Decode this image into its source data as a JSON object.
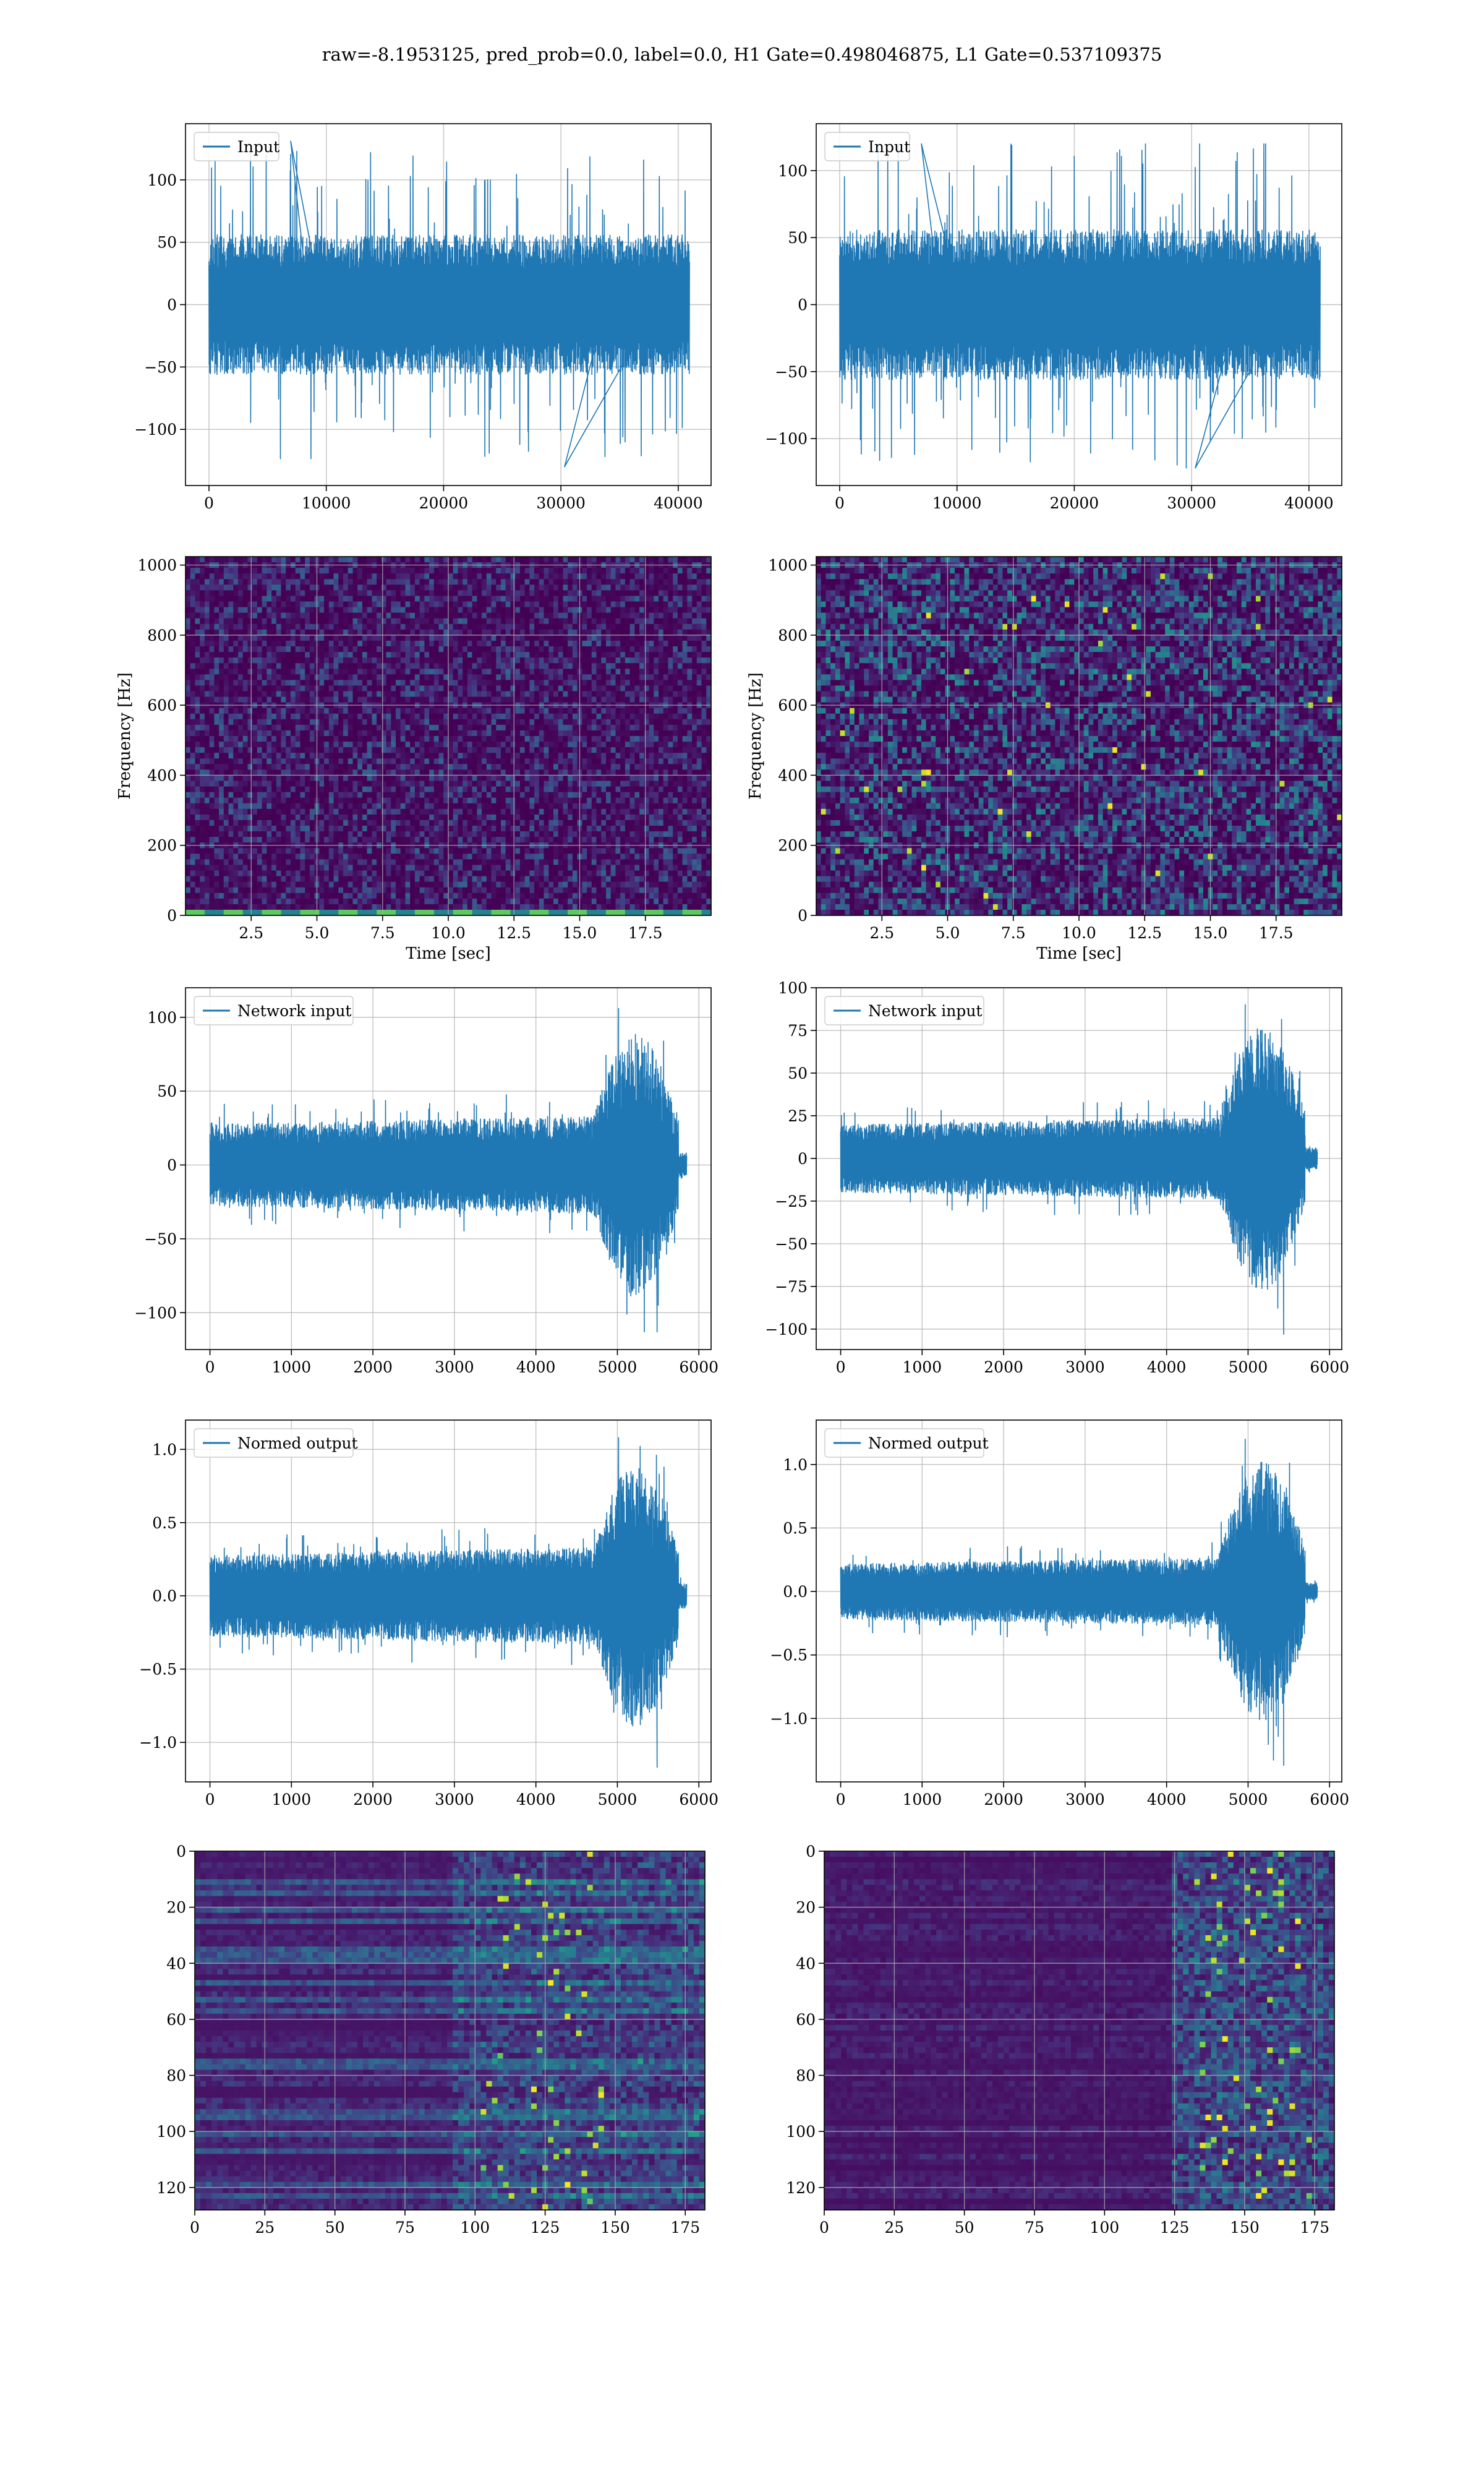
{
  "figure": {
    "suptitle": "raw=-8.1953125, pred_prob=0.0, label=0.0, H1 Gate=0.498046875, L1 Gate=0.537109375"
  },
  "colors": {
    "line": "#1f77b4",
    "viridis_dark": "#440154",
    "viridis_bright": "#fde725",
    "grid": "#b0b0b0"
  },
  "chart_data": [
    {
      "id": "input-h1",
      "type": "line",
      "legend": "Input",
      "legend_position": "upper left",
      "xlim": [
        -2000,
        42800
      ],
      "ylim": [
        -145,
        145
      ],
      "xticks": [
        0,
        10000,
        20000,
        30000,
        40000
      ],
      "yticks": [
        -100,
        -50,
        0,
        50,
        100
      ],
      "grid": true,
      "series": [
        {
          "x_start": 0,
          "x_end": 40960,
          "band": 40,
          "max_peak": 131,
          "min_peak": -130
        }
      ]
    },
    {
      "id": "input-l1",
      "type": "line",
      "legend": "Input",
      "legend_position": "upper left",
      "xlim": [
        -2000,
        42800
      ],
      "ylim": [
        -135,
        135
      ],
      "xticks": [
        0,
        10000,
        20000,
        30000,
        40000
      ],
      "yticks": [
        -100,
        -50,
        0,
        50,
        100
      ],
      "grid": true,
      "series": [
        {
          "x_start": 0,
          "x_end": 40960,
          "band": 40,
          "max_peak": 120,
          "min_peak": -122
        }
      ]
    },
    {
      "id": "spectrogram-h1",
      "type": "heatmap",
      "xlabel": "Time [sec]",
      "ylabel": "Frequency [Hz]",
      "xlim": [
        0,
        20
      ],
      "ylim": [
        0,
        1024
      ],
      "xticks": [
        2.5,
        5.0,
        7.5,
        10.0,
        12.5,
        15.0,
        17.5
      ],
      "yticks": [
        0,
        200,
        400,
        600,
        800,
        1000
      ],
      "grid": true,
      "colormap": "viridis",
      "note_feature": "bright low-frequency line near 20 Hz"
    },
    {
      "id": "spectrogram-l1",
      "type": "heatmap",
      "xlabel": "Time [sec]",
      "ylabel": "Frequency [Hz]",
      "xlim": [
        0,
        20
      ],
      "ylim": [
        0,
        1024
      ],
      "xticks": [
        2.5,
        5.0,
        7.5,
        10.0,
        12.5,
        15.0,
        17.5
      ],
      "yticks": [
        0,
        200,
        400,
        600,
        800,
        1000
      ],
      "grid": true,
      "colormap": "viridis"
    },
    {
      "id": "network-input-h1",
      "type": "line",
      "legend": "Network input",
      "legend_position": "upper left",
      "xlim": [
        -300,
        6150
      ],
      "ylim": [
        -125,
        120
      ],
      "xticks": [
        0,
        1000,
        2000,
        3000,
        4000,
        5000,
        6000
      ],
      "yticks": [
        -100,
        -50,
        0,
        50,
        100
      ],
      "grid": true,
      "series": [
        {
          "x_start": 0,
          "x_end": 5850,
          "base_amp": 25,
          "burst_start": 4700,
          "burst_end": 5750,
          "burst_amp": 75,
          "max_peak": 106,
          "min_peak": -113
        }
      ]
    },
    {
      "id": "network-input-l1",
      "type": "line",
      "legend": "Network input",
      "legend_position": "upper left",
      "xlim": [
        -300,
        6150
      ],
      "ylim": [
        -112,
        100
      ],
      "xticks": [
        0,
        1000,
        2000,
        3000,
        4000,
        5000,
        6000
      ],
      "yticks": [
        -100,
        -75,
        -50,
        -25,
        0,
        25,
        50,
        75,
        100
      ],
      "grid": true,
      "series": [
        {
          "x_start": 0,
          "x_end": 5850,
          "base_amp": 18,
          "burst_start": 4650,
          "burst_end": 5700,
          "burst_amp": 65,
          "max_peak": 90,
          "min_peak": -103
        }
      ]
    },
    {
      "id": "normed-output-h1",
      "type": "line",
      "legend": "Normed output",
      "legend_position": "upper left",
      "xlim": [
        -300,
        6150
      ],
      "ylim": [
        -1.27,
        1.2
      ],
      "xticks": [
        0,
        1000,
        2000,
        3000,
        4000,
        5000,
        6000
      ],
      "yticks": [
        -1.0,
        -0.5,
        0.0,
        0.5,
        1.0
      ],
      "grid": true,
      "series": [
        {
          "x_start": 0,
          "x_end": 5850,
          "base_amp": 0.25,
          "burst_start": 4700,
          "burst_end": 5750,
          "burst_amp": 0.75,
          "max_peak": 1.08,
          "min_peak": -1.17
        }
      ]
    },
    {
      "id": "normed-output-l1",
      "type": "line",
      "legend": "Normed output",
      "legend_position": "upper left",
      "xlim": [
        -300,
        6150
      ],
      "ylim": [
        -1.5,
        1.35
      ],
      "xticks": [
        0,
        1000,
        2000,
        3000,
        4000,
        5000,
        6000
      ],
      "yticks": [
        -1.0,
        -0.5,
        0.0,
        0.5,
        1.0
      ],
      "grid": true,
      "series": [
        {
          "x_start": 0,
          "x_end": 5850,
          "base_amp": 0.2,
          "burst_start": 4650,
          "burst_end": 5700,
          "burst_amp": 0.85,
          "max_peak": 1.2,
          "min_peak": -1.37
        }
      ]
    },
    {
      "id": "feature-map-h1",
      "type": "heatmap",
      "xlim": [
        0,
        182
      ],
      "ylim": [
        128,
        0
      ],
      "xticks": [
        0,
        25,
        50,
        75,
        100,
        125,
        150,
        175
      ],
      "yticks": [
        0,
        20,
        40,
        60,
        80,
        100,
        120
      ],
      "grid": true,
      "colormap": "viridis"
    },
    {
      "id": "feature-map-l1",
      "type": "heatmap",
      "xlim": [
        0,
        182
      ],
      "ylim": [
        128,
        0
      ],
      "xticks": [
        0,
        25,
        50,
        75,
        100,
        125,
        150,
        175
      ],
      "yticks": [
        0,
        20,
        40,
        60,
        80,
        100,
        120
      ],
      "grid": true,
      "colormap": "viridis"
    }
  ]
}
